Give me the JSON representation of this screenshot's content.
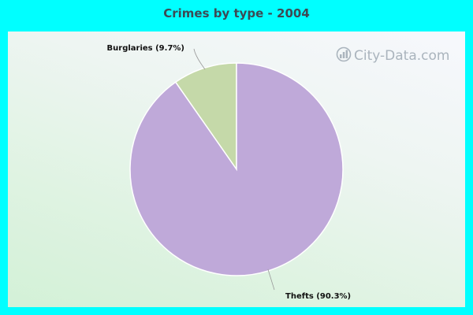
{
  "chart_data": {
    "type": "pie",
    "title": "Crimes by type - 2004",
    "slices": [
      {
        "label": "Burglaries",
        "value": 9.7,
        "display": "Burglaries (9.7%)",
        "color": "#c5d9a9"
      },
      {
        "label": "Thefts",
        "value": 90.3,
        "display": "Thefts (90.3%)",
        "color": "#bfa9d9"
      }
    ],
    "start_angle_deg": 0,
    "direction": "counterclockwise"
  },
  "watermark": {
    "text": "City-Data.com",
    "icon": "city-data-logo-icon"
  },
  "colors": {
    "background": "#00FFFF",
    "slice_edge": "#ffffff",
    "leader_line": "#999999"
  }
}
